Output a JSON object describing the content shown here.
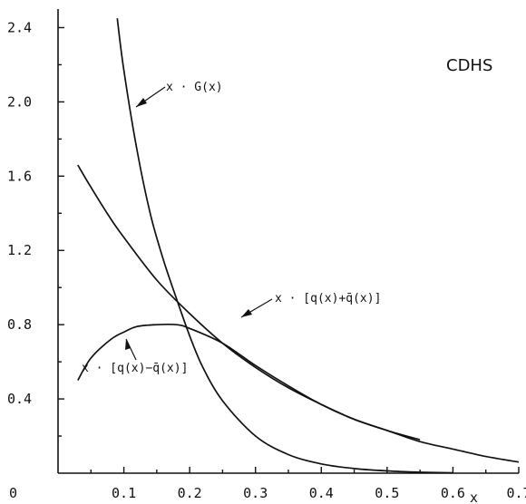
{
  "chart_data": {
    "type": "line",
    "collaboration_label": "CDHS",
    "xlabel": "x",
    "ylabel": "",
    "xlim": [
      0,
      0.7
    ],
    "ylim": [
      0,
      2.5
    ],
    "xticks": [
      0.1,
      0.2,
      0.3,
      0.4,
      0.5,
      0.6,
      0.7
    ],
    "xtick_labels": [
      "0.1",
      "0.2",
      "0.3",
      "0.4",
      "0.5",
      "0.6",
      "0.7"
    ],
    "origin_label": "0",
    "yticks": [
      0.4,
      0.8,
      1.2,
      1.6,
      2.0,
      2.4
    ],
    "ytick_labels": [
      "0.4",
      "0.8",
      "1.2",
      "1.6",
      "2.0",
      "2.4"
    ],
    "series": [
      {
        "name": "x · G(x)",
        "x": [
          0.09,
          0.1,
          0.12,
          0.14,
          0.16,
          0.18,
          0.2,
          0.22,
          0.25,
          0.3,
          0.35,
          0.4,
          0.45,
          0.5,
          0.55,
          0.6
        ],
        "y": [
          2.45,
          2.17,
          1.74,
          1.4,
          1.15,
          0.94,
          0.74,
          0.57,
          0.39,
          0.2,
          0.1,
          0.05,
          0.025,
          0.012,
          0.005,
          0.002
        ]
      },
      {
        "name": "x · [q(x)+q̄(x)]",
        "x": [
          0.03,
          0.05,
          0.08,
          0.1,
          0.15,
          0.2,
          0.25,
          0.3,
          0.35,
          0.4,
          0.45,
          0.5,
          0.55,
          0.6,
          0.65,
          0.7
        ],
        "y": [
          1.66,
          1.54,
          1.37,
          1.27,
          1.04,
          0.86,
          0.7,
          0.57,
          0.46,
          0.37,
          0.29,
          0.23,
          0.17,
          0.13,
          0.09,
          0.06
        ]
      },
      {
        "name": "x · [q(x)−q̄(x)]",
        "x": [
          0.03,
          0.05,
          0.08,
          0.1,
          0.12,
          0.15,
          0.18,
          0.2,
          0.25,
          0.3,
          0.35,
          0.4,
          0.45,
          0.5,
          0.55
        ],
        "y": [
          0.5,
          0.62,
          0.72,
          0.76,
          0.79,
          0.8,
          0.8,
          0.78,
          0.7,
          0.58,
          0.47,
          0.37,
          0.29,
          0.23,
          0.18
        ]
      }
    ]
  }
}
